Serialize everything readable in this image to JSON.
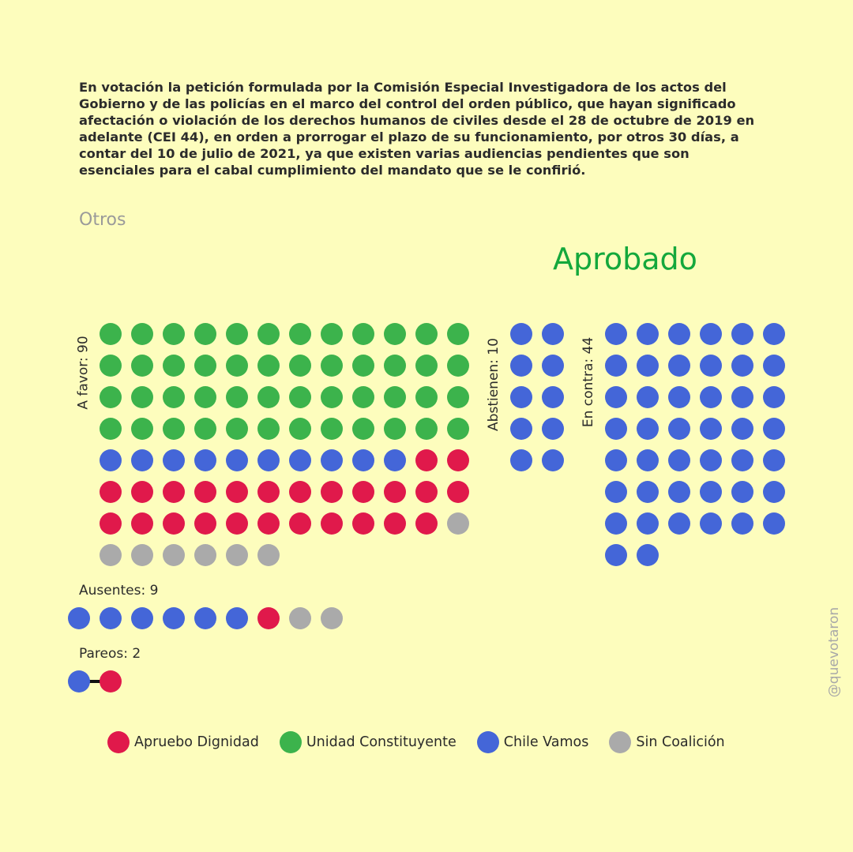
{
  "title": "En votación la petición formulada por la Comisión Especial Investigadora de los actos del\nGobierno y de las policías en el marco del control del orden público, que hayan significado\nafectación o violación de los derechos humanos de civiles desde el 28 de octubre de 2019 en\nadelante (CEI 44), en orden a prorrogar el plazo de su funcionamiento, por otros 30 días, a\ncontar del 10 de julio de 2021, ya que existen varias audiencias pendientes que son\nesenciales para el cabal cumplimiento del mandato que se le confirió.",
  "category": "Otros",
  "result": "Aprobado",
  "handle": "@quevotaron",
  "colors": {
    "apruebo": "#e0194b",
    "unidad": "#3cb34c",
    "chile": "#4466d8",
    "sin": "#aaaaaa",
    "result": "#14a83c"
  },
  "legend": [
    {
      "key": "apruebo",
      "label": "Apruebo Dignidad"
    },
    {
      "key": "unidad",
      "label": "Unidad Constituyente"
    },
    {
      "key": "chile",
      "label": "Chile Vamos"
    },
    {
      "key": "sin",
      "label": "Sin Coalición"
    }
  ],
  "chart_data": {
    "type": "waffle",
    "groups": [
      {
        "id": "favor",
        "label": "A favor: 90",
        "total": 90,
        "counts": {
          "unidad": 48,
          "chile": 10,
          "apruebo": 25,
          "sin": 7
        }
      },
      {
        "id": "abstienen",
        "label": "Abstienen: 10",
        "total": 10,
        "counts": {
          "chile": 10
        }
      },
      {
        "id": "contra",
        "label": "En contra: 44",
        "total": 44,
        "counts": {
          "chile": 44
        }
      },
      {
        "id": "ausentes",
        "label": "Ausentes: 9",
        "total": 9,
        "counts": {
          "chile": 6,
          "apruebo": 1,
          "sin": 2
        }
      },
      {
        "id": "pareos",
        "label": "Pareos: 2",
        "total": 2,
        "counts": {
          "chile": 1,
          "apruebo": 1
        }
      }
    ]
  }
}
